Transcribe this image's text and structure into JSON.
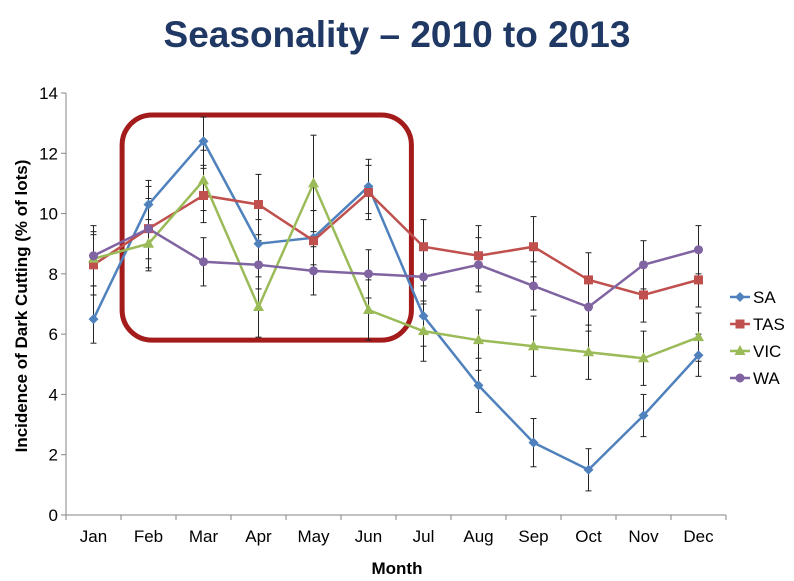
{
  "chart_data": {
    "type": "line",
    "title": "Seasonality – 2010 to 2013",
    "xlabel": "Month",
    "ylabel": "Incidence of Dark Cutting (% of lots)",
    "categories": [
      "Jan",
      "Feb",
      "Mar",
      "Apr",
      "May",
      "Jun",
      "Jul",
      "Aug",
      "Sep",
      "Oct",
      "Nov",
      "Dec"
    ],
    "ylim": [
      0,
      14
    ],
    "yticks": [
      0,
      2,
      4,
      6,
      8,
      10,
      12,
      14
    ],
    "grid": false,
    "legend_position": "right",
    "highlight": {
      "from": "Feb",
      "to": "Jun",
      "color": "#a31b1b"
    },
    "series": [
      {
        "name": "SA",
        "color": "#4f81bd",
        "marker": "diamond",
        "values": [
          6.5,
          10.3,
          12.4,
          9.0,
          9.2,
          10.9,
          6.6,
          4.3,
          2.4,
          1.5,
          3.3,
          5.3
        ],
        "errors": [
          0.8,
          0.8,
          0.8,
          0.8,
          0.9,
          0.9,
          1.0,
          0.9,
          0.8,
          0.7,
          0.7,
          0.7
        ]
      },
      {
        "name": "TAS",
        "color": "#c0504d",
        "marker": "square",
        "values": [
          8.3,
          9.5,
          10.6,
          10.3,
          9.1,
          10.7,
          8.9,
          8.6,
          8.9,
          7.8,
          7.3,
          7.8
        ],
        "errors": [
          1.0,
          1.0,
          0.9,
          1.0,
          1.0,
          0.9,
          0.9,
          1.0,
          1.0,
          0.9,
          0.9,
          0.9
        ]
      },
      {
        "name": "VIC",
        "color": "#9bbb59",
        "marker": "triangle",
        "values": [
          8.5,
          9.0,
          11.1,
          6.9,
          11.0,
          6.8,
          6.1,
          5.8,
          5.6,
          5.4,
          5.2,
          5.9
        ],
        "errors": [
          0.9,
          0.8,
          1.0,
          1.0,
          1.6,
          1.0,
          1.0,
          1.0,
          1.0,
          0.9,
          0.9,
          0.8
        ]
      },
      {
        "name": "WA",
        "color": "#8064a2",
        "marker": "circle",
        "values": [
          8.6,
          9.5,
          8.4,
          8.3,
          8.1,
          8.0,
          7.9,
          8.3,
          7.6,
          6.9,
          8.3,
          8.8
        ],
        "errors": [
          1.0,
          1.4,
          0.8,
          0.8,
          0.8,
          0.8,
          0.9,
          0.9,
          0.8,
          0.8,
          0.8,
          0.8
        ]
      }
    ]
  }
}
